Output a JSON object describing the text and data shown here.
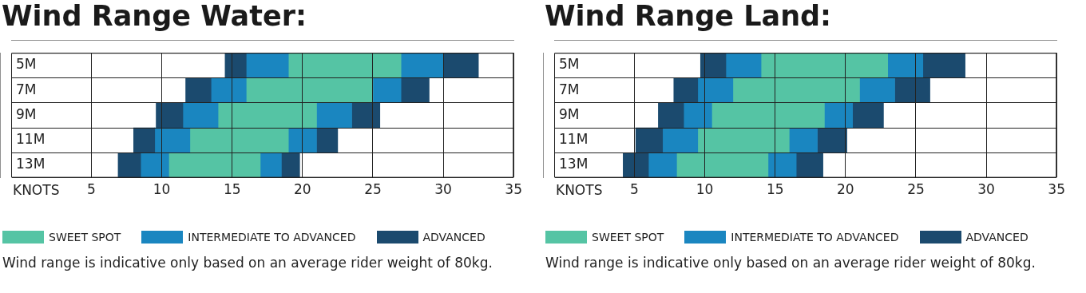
{
  "chart_data": [
    {
      "type": "bar",
      "title": "Wind Range Water:",
      "xlabel": "KNOTS",
      "orientation": "horizontal",
      "grid": true,
      "legend": "bottom left",
      "categories": [
        "5M",
        "7M",
        "9M",
        "11M",
        "13M"
      ],
      "xlim": [
        -0.7,
        35
      ],
      "xticks": [
        5,
        10,
        15,
        20,
        25,
        30,
        35
      ],
      "series": [
        {
          "color": "#1b4a6e",
          "base": [
            14.5,
            11.7,
            9.6,
            8,
            6.9
          ],
          "values": [
            1.5,
            1.8,
            1.9,
            1.5,
            1.6
          ]
        },
        {
          "color": "#1a86c0",
          "base": [
            16,
            13.5,
            11.5,
            9.5,
            8.5
          ],
          "values": [
            3,
            2.5,
            2.5,
            2.5,
            2
          ]
        },
        {
          "name": "SWEET SPOT",
          "color": "#55c4a4",
          "base": [
            19,
            16,
            14,
            12,
            10.5
          ],
          "values": [
            8,
            9,
            7,
            7,
            6.5
          ]
        },
        {
          "name": "INTERMEDIATE TO ADVANCED",
          "color": "#1a86c0",
          "base": [
            27,
            25,
            21,
            19,
            17
          ],
          "values": [
            3,
            2,
            2.5,
            2,
            1.5
          ]
        },
        {
          "name": "ADVANCED",
          "color": "#1b4a6e",
          "base": [
            30,
            27,
            23.5,
            21,
            18.5
          ],
          "values": [
            2.5,
            2,
            2,
            1.5,
            1.3
          ]
        }
      ],
      "annotations": [
        "Wind range is indicative only based on an average rider weight of 80kg."
      ]
    },
    {
      "type": "bar",
      "title": "Wind Range Land:",
      "xlabel": "KNOTS",
      "orientation": "horizontal",
      "grid": true,
      "legend": "bottom left",
      "categories": [
        "5M",
        "7M",
        "9M",
        "11M",
        "13M"
      ],
      "xlim": [
        -0.7,
        35
      ],
      "xticks": [
        5,
        10,
        15,
        20,
        25,
        30,
        35
      ],
      "series": [
        {
          "color": "#1b4a6e",
          "base": [
            9.7,
            7.8,
            6.7,
            5.1,
            4.2
          ],
          "values": [
            1.8,
            1.7,
            1.8,
            1.9,
            1.8
          ]
        },
        {
          "color": "#1a86c0",
          "base": [
            11.5,
            9.5,
            8.5,
            7,
            6
          ],
          "values": [
            2.5,
            2.5,
            2,
            2.5,
            2
          ]
        },
        {
          "name": "SWEET SPOT",
          "color": "#55c4a4",
          "base": [
            14,
            12,
            10.5,
            9.5,
            8
          ],
          "values": [
            9,
            9,
            8,
            6.5,
            6.5
          ]
        },
        {
          "name": "INTERMEDIATE TO ADVANCED",
          "color": "#1a86c0",
          "base": [
            23,
            21,
            18.5,
            16,
            14.5
          ],
          "values": [
            2.5,
            2.5,
            2,
            2,
            2
          ]
        },
        {
          "name": "ADVANCED",
          "color": "#1b4a6e",
          "base": [
            25.5,
            23.5,
            20.5,
            18,
            16.5
          ],
          "values": [
            3,
            2.5,
            2.2,
            2.1,
            1.9
          ]
        }
      ],
      "annotations": [
        "Wind range is indicative only based on an average rider weight of 80kg."
      ]
    }
  ]
}
